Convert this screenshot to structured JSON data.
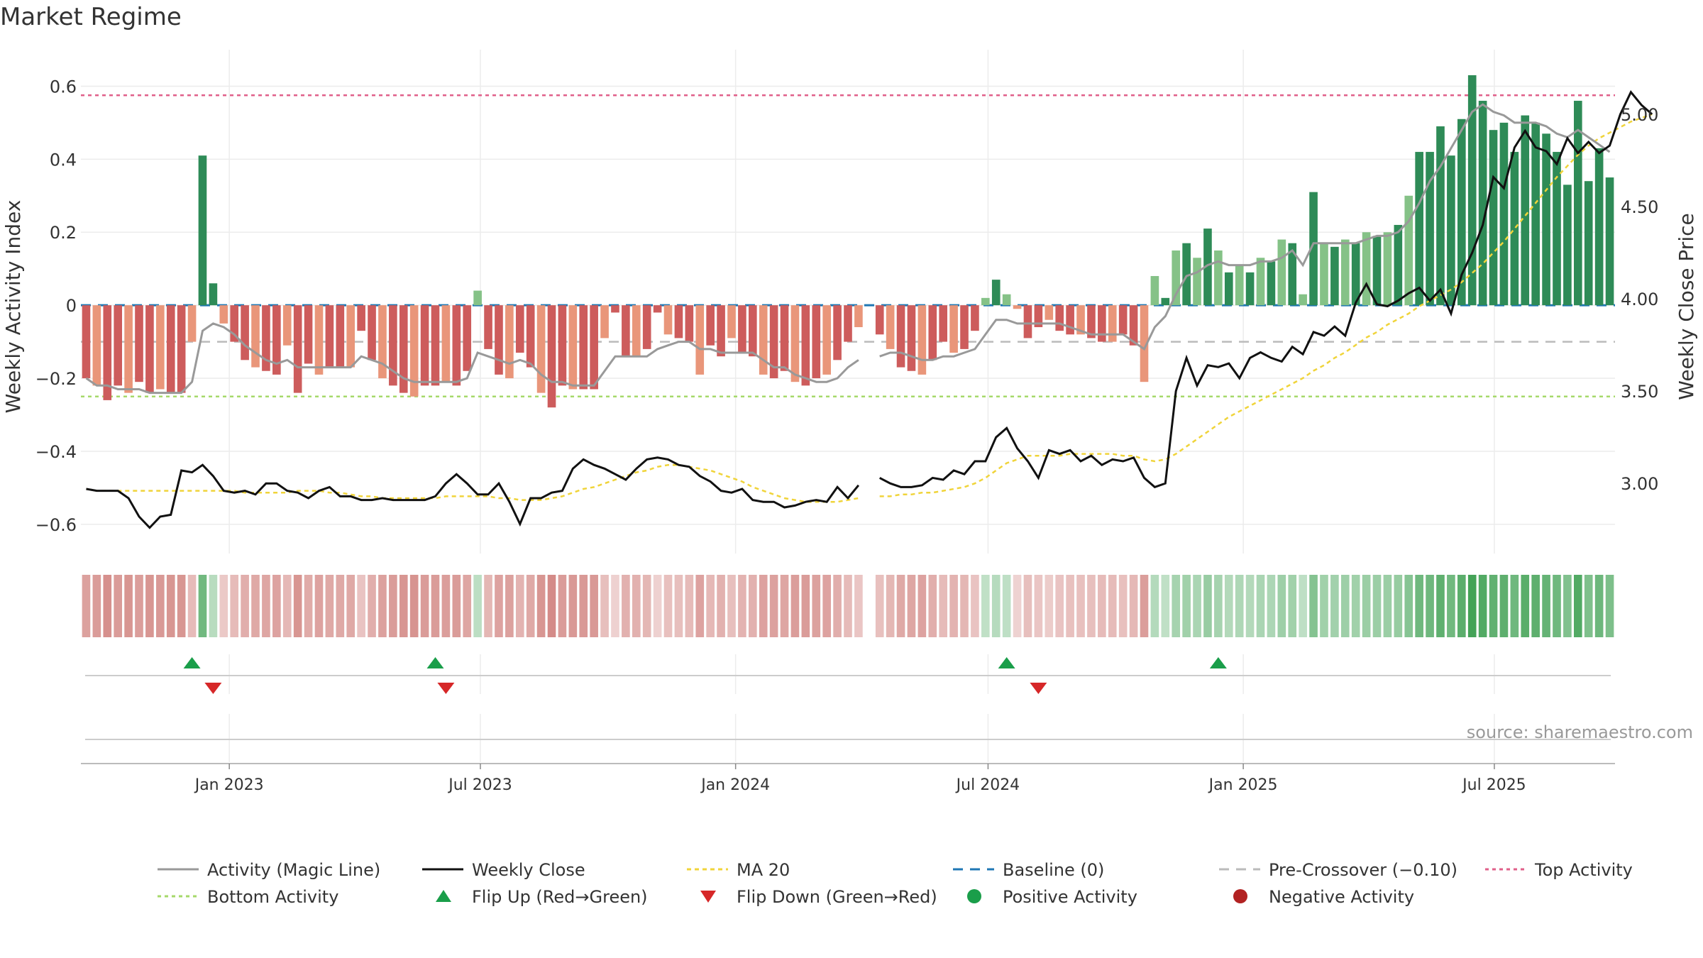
{
  "title": "Market Regime",
  "source": "source: sharemaestro.com",
  "colors": {
    "pos_dark": "#2e8b57",
    "pos_light": "#85c287",
    "neg_dark": "#cd5c5c",
    "neg_light": "#e9967a",
    "magic": "#999999",
    "close": "#111111",
    "ma20": "#f0d43a",
    "baseline": "#1f77b4",
    "precross": "#bbbbbb",
    "top": "#e0608a",
    "bottom": "#a6d96a",
    "flip_up": "#1a9e4a",
    "flip_down": "#d62728",
    "pos_dot": "#1a9e4a",
    "neg_dot": "#b22222"
  },
  "chart_data": {
    "type": "bar",
    "title": "Market Regime",
    "ylabel": "Weekly Activity Index",
    "y2label": "Weekly Close Price",
    "ylim": [
      -0.68,
      0.7
    ],
    "y2lim": [
      2.62,
      5.35
    ],
    "yticks": [
      0.6,
      0.4,
      0.2,
      0,
      -0.2,
      -0.4,
      -0.6
    ],
    "ytick_labels": [
      "0.6",
      "0.4",
      "0.2",
      "0",
      "−0.2",
      "−0.4",
      "−0.6"
    ],
    "y2ticks": [
      5.0,
      4.5,
      4.0,
      3.5,
      3.0
    ],
    "y2tick_labels": [
      "5.00",
      "4.50",
      "4.00",
      "3.50",
      "3.00"
    ],
    "date_start": "2022-09-16",
    "date_end": "2025-09-26",
    "xticks": [
      {
        "date": "2023-01-01",
        "label": "Jan 2023"
      },
      {
        "date": "2023-07-01",
        "label": "Jul 2023"
      },
      {
        "date": "2024-01-01",
        "label": "Jan 2024"
      },
      {
        "date": "2024-07-01",
        "label": "Jul 2024"
      },
      {
        "date": "2025-01-01",
        "label": "Jan 2025"
      },
      {
        "date": "2025-07-01",
        "label": "Jul 2025"
      }
    ],
    "reference_lines": {
      "top_activity": 0.575,
      "bottom_activity": -0.25,
      "pre_crossover": -0.1,
      "baseline": 0
    },
    "gap_weeks": [
      74
    ],
    "activity": [
      -0.2,
      -0.22,
      -0.26,
      -0.22,
      -0.24,
      -0.21,
      -0.24,
      -0.23,
      -0.24,
      -0.24,
      -0.1,
      0.41,
      0.06,
      -0.05,
      -0.1,
      -0.15,
      -0.17,
      -0.18,
      -0.19,
      -0.11,
      -0.24,
      -0.16,
      -0.19,
      -0.17,
      -0.17,
      -0.17,
      -0.07,
      -0.15,
      -0.2,
      -0.22,
      -0.24,
      -0.25,
      -0.22,
      -0.22,
      -0.21,
      -0.22,
      -0.18,
      0.04,
      -0.12,
      -0.19,
      -0.2,
      -0.13,
      -0.17,
      -0.24,
      -0.28,
      -0.22,
      -0.23,
      -0.23,
      -0.23,
      -0.09,
      -0.02,
      -0.14,
      -0.14,
      -0.12,
      -0.02,
      -0.08,
      -0.09,
      -0.1,
      -0.19,
      -0.11,
      -0.14,
      -0.09,
      -0.13,
      -0.14,
      -0.19,
      -0.2,
      -0.18,
      -0.21,
      -0.22,
      -0.2,
      -0.19,
      -0.15,
      -0.1,
      -0.06,
      null,
      -0.08,
      -0.12,
      -0.17,
      -0.18,
      -0.19,
      -0.15,
      -0.1,
      -0.13,
      -0.12,
      -0.07,
      0.02,
      0.07,
      0.03,
      -0.01,
      -0.09,
      -0.06,
      -0.04,
      -0.07,
      -0.08,
      -0.08,
      -0.09,
      -0.1,
      -0.1,
      -0.08,
      -0.11,
      -0.21,
      0.08,
      0.02,
      0.15,
      0.17,
      0.13,
      0.21,
      0.15,
      0.09,
      0.11,
      0.09,
      0.13,
      0.12,
      0.18,
      0.17,
      0.03,
      0.31,
      0.17,
      0.16,
      0.18,
      0.17,
      0.2,
      0.19,
      0.2,
      0.22,
      0.3,
      0.42,
      0.42,
      0.49,
      0.41,
      0.51,
      0.63,
      0.56,
      0.48,
      0.5,
      0.42,
      0.52,
      0.5,
      0.47,
      0.42,
      0.33,
      0.56,
      0.34,
      0.43,
      0.35
    ],
    "magic_line": [
      -0.2,
      -0.22,
      -0.22,
      -0.23,
      -0.23,
      -0.23,
      -0.24,
      -0.24,
      -0.24,
      -0.24,
      -0.21,
      -0.07,
      -0.05,
      -0.06,
      -0.08,
      -0.11,
      -0.13,
      -0.15,
      -0.16,
      -0.15,
      -0.17,
      -0.17,
      -0.17,
      -0.17,
      -0.17,
      -0.17,
      -0.14,
      -0.15,
      -0.16,
      -0.18,
      -0.2,
      -0.21,
      -0.21,
      -0.21,
      -0.21,
      -0.21,
      -0.2,
      -0.13,
      -0.14,
      -0.15,
      -0.16,
      -0.15,
      -0.16,
      -0.19,
      -0.21,
      -0.21,
      -0.22,
      -0.22,
      -0.22,
      -0.18,
      -0.14,
      -0.14,
      -0.14,
      -0.14,
      -0.12,
      -0.11,
      -0.1,
      -0.1,
      -0.12,
      -0.12,
      -0.13,
      -0.13,
      -0.13,
      -0.13,
      -0.15,
      -0.17,
      -0.17,
      -0.19,
      -0.2,
      -0.21,
      -0.21,
      -0.2,
      -0.17,
      -0.15,
      null,
      -0.14,
      -0.13,
      -0.13,
      -0.14,
      -0.15,
      -0.15,
      -0.14,
      -0.14,
      -0.13,
      -0.12,
      -0.08,
      -0.04,
      -0.04,
      -0.05,
      -0.05,
      -0.05,
      -0.05,
      -0.05,
      -0.06,
      -0.07,
      -0.08,
      -0.08,
      -0.08,
      -0.08,
      -0.1,
      -0.12,
      -0.06,
      -0.03,
      0.03,
      0.08,
      0.09,
      0.11,
      0.12,
      0.11,
      0.11,
      0.11,
      0.12,
      0.12,
      0.13,
      0.15,
      0.11,
      0.17,
      0.17,
      0.17,
      0.17,
      0.17,
      0.18,
      0.19,
      0.19,
      0.2,
      0.23,
      0.28,
      0.34,
      0.38,
      0.43,
      0.48,
      0.53,
      0.55,
      0.53,
      0.52,
      0.5,
      0.5,
      0.5,
      0.49,
      0.47,
      0.46,
      0.48,
      0.46,
      0.44,
      0.42
    ],
    "weekly_close": [
      2.97,
      2.96,
      2.96,
      2.96,
      2.92,
      2.82,
      2.76,
      2.82,
      2.83,
      3.07,
      3.06,
      3.1,
      3.04,
      2.96,
      2.95,
      2.96,
      2.94,
      3.0,
      3.0,
      2.96,
      2.95,
      2.92,
      2.96,
      2.98,
      2.93,
      2.93,
      2.91,
      2.91,
      2.92,
      2.91,
      2.91,
      2.91,
      2.91,
      2.93,
      3.0,
      3.05,
      3.0,
      2.94,
      2.94,
      3.0,
      2.9,
      2.78,
      2.92,
      2.92,
      2.95,
      2.96,
      3.08,
      3.13,
      3.1,
      3.08,
      3.05,
      3.02,
      3.08,
      3.13,
      3.14,
      3.13,
      3.1,
      3.09,
      3.04,
      3.01,
      2.96,
      2.95,
      2.97,
      2.91,
      2.9,
      2.9,
      2.87,
      2.88,
      2.9,
      2.91,
      2.9,
      2.98,
      2.92,
      2.99,
      null,
      3.03,
      3.0,
      2.98,
      2.98,
      2.99,
      3.03,
      3.02,
      3.07,
      3.05,
      3.12,
      3.12,
      3.25,
      3.3,
      3.19,
      3.12,
      3.03,
      3.18,
      3.16,
      3.18,
      3.12,
      3.15,
      3.1,
      3.13,
      3.12,
      3.14,
      3.03,
      2.98,
      3.0,
      3.5,
      3.68,
      3.53,
      3.64,
      3.63,
      3.65,
      3.57,
      3.68,
      3.71,
      3.68,
      3.66,
      3.74,
      3.7,
      3.82,
      3.8,
      3.85,
      3.8,
      3.98,
      4.08,
      3.97,
      3.96,
      3.99,
      4.03,
      4.06,
      3.99,
      4.05,
      3.92,
      4.13,
      4.25,
      4.4,
      4.66,
      4.6,
      4.82,
      4.91,
      4.82,
      4.8,
      4.73,
      4.87,
      4.79,
      4.85,
      4.79,
      4.83,
      5.0,
      5.12,
      5.05,
      5.0
    ],
    "ma20": [
      2.97,
      2.96,
      2.96,
      2.96,
      2.96,
      2.96,
      2.96,
      2.96,
      2.96,
      2.96,
      2.96,
      2.96,
      2.96,
      2.96,
      2.96,
      2.95,
      2.95,
      2.95,
      2.95,
      2.95,
      2.96,
      2.96,
      2.96,
      2.95,
      2.95,
      2.94,
      2.93,
      2.93,
      2.92,
      2.92,
      2.92,
      2.92,
      2.92,
      2.92,
      2.93,
      2.93,
      2.93,
      2.93,
      2.93,
      2.92,
      2.92,
      2.91,
      2.91,
      2.91,
      2.92,
      2.93,
      2.95,
      2.97,
      2.98,
      3.0,
      3.02,
      3.04,
      3.06,
      3.07,
      3.09,
      3.1,
      3.1,
      3.09,
      3.08,
      3.07,
      3.05,
      3.03,
      3.01,
      2.98,
      2.96,
      2.94,
      2.92,
      2.91,
      2.9,
      2.9,
      2.9,
      2.9,
      2.91,
      2.92,
      null,
      2.93,
      2.93,
      2.94,
      2.94,
      2.95,
      2.95,
      2.96,
      2.97,
      2.98,
      3.0,
      3.03,
      3.07,
      3.11,
      3.13,
      3.15,
      3.15,
      3.15,
      3.15,
      3.16,
      3.16,
      3.16,
      3.16,
      3.16,
      3.15,
      3.15,
      3.13,
      3.12,
      3.13,
      3.16,
      3.2,
      3.24,
      3.28,
      3.32,
      3.36,
      3.39,
      3.42,
      3.45,
      3.48,
      3.51,
      3.54,
      3.57,
      3.61,
      3.64,
      3.68,
      3.71,
      3.75,
      3.79,
      3.82,
      3.86,
      3.89,
      3.92,
      3.96,
      3.99,
      4.02,
      4.05,
      4.09,
      4.14,
      4.19,
      4.25,
      4.31,
      4.38,
      4.45,
      4.52,
      4.59,
      4.66,
      4.72,
      4.78,
      4.83,
      4.87,
      4.9,
      4.93,
      4.96,
      4.98,
      5.0
    ],
    "flip_up_weeks": [
      10,
      33,
      87,
      107
    ],
    "flip_down_weeks": [
      12,
      34,
      90
    ]
  },
  "legend": [
    {
      "key": "magic",
      "label": "Activity (Magic Line)"
    },
    {
      "key": "close",
      "label": "Weekly Close"
    },
    {
      "key": "ma20",
      "label": "MA 20"
    },
    {
      "key": "baseline",
      "label": "Baseline (0)"
    },
    {
      "key": "precross",
      "label": "Pre-Crossover (−0.10)"
    },
    {
      "key": "top",
      "label": "Top Activity"
    },
    {
      "key": "bottom",
      "label": "Bottom Activity"
    },
    {
      "key": "flip_up",
      "label": "Flip Up (Red→Green)"
    },
    {
      "key": "flip_down",
      "label": "Flip Down (Green→Red)"
    },
    {
      "key": "pos_dot",
      "label": "Positive Activity"
    },
    {
      "key": "neg_dot",
      "label": "Negative Activity"
    }
  ]
}
